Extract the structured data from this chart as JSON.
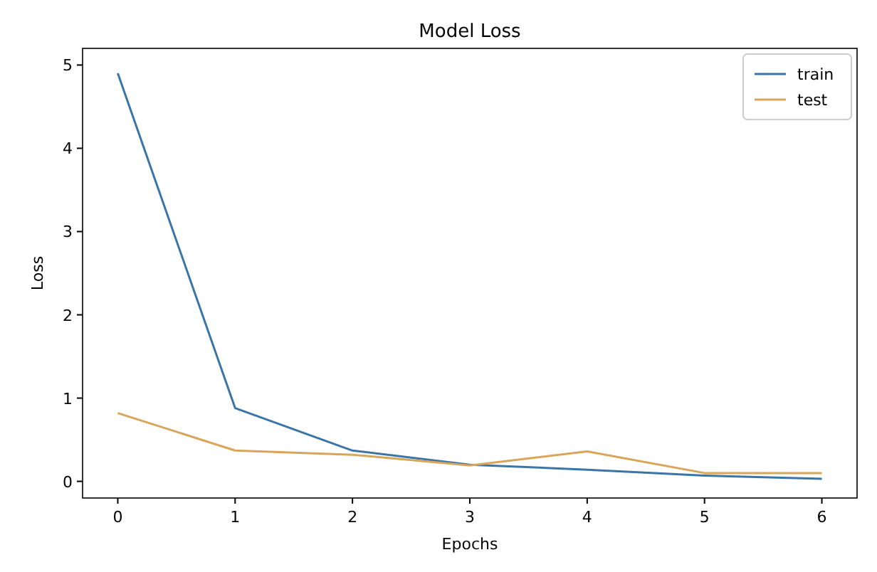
{
  "chart_data": {
    "type": "line",
    "title": "Model Loss",
    "xlabel": "Epochs",
    "ylabel": "Loss",
    "x": [
      0,
      1,
      2,
      3,
      4,
      5,
      6
    ],
    "series": [
      {
        "name": "train",
        "color": "#3b75a6",
        "values": [
          4.9,
          0.88,
          0.37,
          0.2,
          0.14,
          0.07,
          0.03
        ]
      },
      {
        "name": "test",
        "color": "#d9a55a",
        "values": [
          0.82,
          0.37,
          0.32,
          0.19,
          0.36,
          0.1,
          0.1
        ]
      }
    ],
    "xlim": [
      -0.3,
      6.3
    ],
    "xticks": [
      0,
      1,
      2,
      3,
      4,
      5,
      6
    ],
    "ylim": [
      -0.2,
      5.2
    ],
    "yticks": [
      0,
      1,
      2,
      3,
      4,
      5
    ],
    "legend": "top right",
    "grid": false
  }
}
